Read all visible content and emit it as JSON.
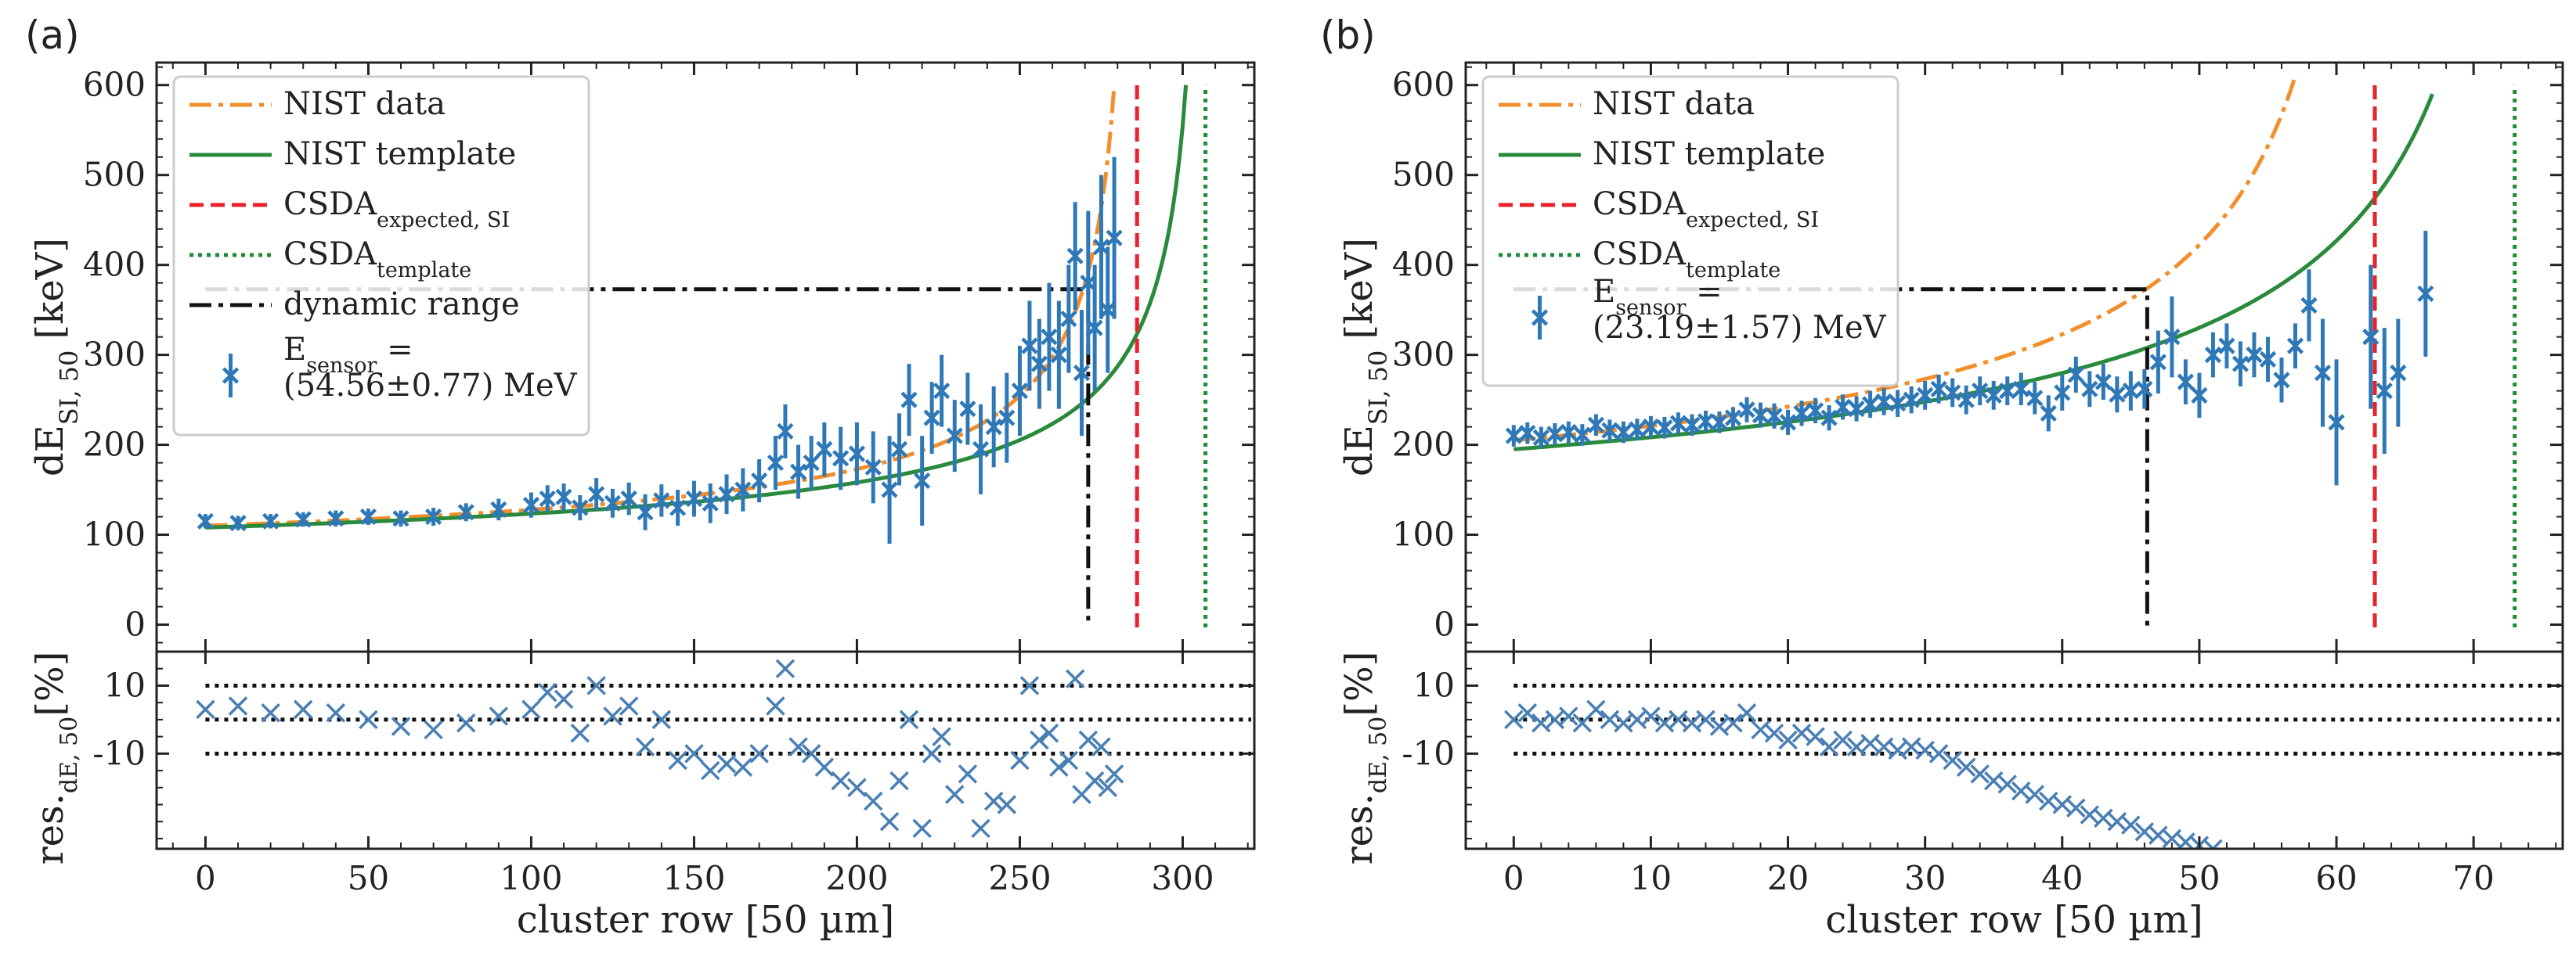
{
  "chart_data": [
    {
      "panel_label": "(a)",
      "type": "scatter",
      "xlabel": "cluster row [50 µm]",
      "ylabel_main": "dE",
      "ylabel_main_sub": "SI, 50",
      "ylabel_main_unit": "[keV]",
      "ylabel_res": "res.",
      "ylabel_res_sub": "dE, 50",
      "ylabel_res_unit": "[%]",
      "xlim": [
        -15,
        322
      ],
      "ylim": [
        -30,
        625
      ],
      "res_ylim": [
        -38,
        20
      ],
      "xticks": [
        0,
        50,
        100,
        150,
        200,
        250,
        300
      ],
      "yticks": [
        0,
        100,
        200,
        300,
        400,
        500,
        600
      ],
      "res_ticks": [
        10,
        -10
      ],
      "res_lines": [
        10,
        0,
        -10
      ],
      "legend": {
        "nist_data": "NIST data",
        "nist_template": "NIST template",
        "csda_expected": "CSDA",
        "csda_expected_sub": "expected, SI",
        "csda_template": "CSDA",
        "csda_template_sub": "template",
        "dynamic_range": "dynamic range",
        "sensor_line1": "E",
        "sensor_line1_sub": "sensor",
        "sensor_line1_tail": " =",
        "sensor_line2": "(54.56±0.77) MeV"
      },
      "nist_data_curve": {
        "x_end": 279,
        "asymptote": 282,
        "A": 2430,
        "p": 0.55,
        "offset": 30
      },
      "nist_template_curve": {
        "x_end": 301,
        "asymptote": 304,
        "A": 2560,
        "p": 0.55,
        "offset": 30
      },
      "csda_expected_x": 286,
      "csda_template_x": 307,
      "dynamic_range": {
        "x": 271,
        "y": 373,
        "x_start": 0
      },
      "measurement_points": [
        {
          "x": 0,
          "y": 115,
          "err": 8
        },
        {
          "x": 10,
          "y": 113,
          "err": 8
        },
        {
          "x": 20,
          "y": 115,
          "err": 8
        },
        {
          "x": 30,
          "y": 117,
          "err": 8
        },
        {
          "x": 40,
          "y": 118,
          "err": 9
        },
        {
          "x": 50,
          "y": 120,
          "err": 9
        },
        {
          "x": 60,
          "y": 118,
          "err": 9
        },
        {
          "x": 70,
          "y": 120,
          "err": 10
        },
        {
          "x": 80,
          "y": 125,
          "err": 10
        },
        {
          "x": 90,
          "y": 128,
          "err": 12
        },
        {
          "x": 100,
          "y": 133,
          "err": 14
        },
        {
          "x": 105,
          "y": 140,
          "err": 15
        },
        {
          "x": 110,
          "y": 142,
          "err": 15
        },
        {
          "x": 115,
          "y": 130,
          "err": 14
        },
        {
          "x": 120,
          "y": 145,
          "err": 18
        },
        {
          "x": 125,
          "y": 135,
          "err": 16
        },
        {
          "x": 130,
          "y": 140,
          "err": 18
        },
        {
          "x": 135,
          "y": 125,
          "err": 20
        },
        {
          "x": 140,
          "y": 138,
          "err": 18
        },
        {
          "x": 145,
          "y": 130,
          "err": 20
        },
        {
          "x": 150,
          "y": 140,
          "err": 20
        },
        {
          "x": 155,
          "y": 135,
          "err": 22
        },
        {
          "x": 160,
          "y": 145,
          "err": 22
        },
        {
          "x": 165,
          "y": 150,
          "err": 24
        },
        {
          "x": 170,
          "y": 160,
          "err": 24
        },
        {
          "x": 175,
          "y": 180,
          "err": 30
        },
        {
          "x": 178,
          "y": 215,
          "err": 30
        },
        {
          "x": 182,
          "y": 170,
          "err": 30
        },
        {
          "x": 186,
          "y": 180,
          "err": 30
        },
        {
          "x": 190,
          "y": 195,
          "err": 30
        },
        {
          "x": 195,
          "y": 185,
          "err": 35
        },
        {
          "x": 200,
          "y": 190,
          "err": 35
        },
        {
          "x": 205,
          "y": 175,
          "err": 40
        },
        {
          "x": 210,
          "y": 150,
          "err": 60
        },
        {
          "x": 213,
          "y": 195,
          "err": 40
        },
        {
          "x": 216,
          "y": 250,
          "err": 40
        },
        {
          "x": 220,
          "y": 160,
          "err": 50
        },
        {
          "x": 223,
          "y": 230,
          "err": 40
        },
        {
          "x": 226,
          "y": 260,
          "err": 40
        },
        {
          "x": 230,
          "y": 210,
          "err": 40
        },
        {
          "x": 234,
          "y": 240,
          "err": 40
        },
        {
          "x": 238,
          "y": 195,
          "err": 50
        },
        {
          "x": 242,
          "y": 220,
          "err": 45
        },
        {
          "x": 246,
          "y": 230,
          "err": 50
        },
        {
          "x": 250,
          "y": 260,
          "err": 50
        },
        {
          "x": 253,
          "y": 310,
          "err": 50
        },
        {
          "x": 256,
          "y": 290,
          "err": 50
        },
        {
          "x": 259,
          "y": 320,
          "err": 60
        },
        {
          "x": 262,
          "y": 300,
          "err": 60
        },
        {
          "x": 265,
          "y": 340,
          "err": 60
        },
        {
          "x": 267,
          "y": 410,
          "err": 60
        },
        {
          "x": 269,
          "y": 280,
          "err": 70
        },
        {
          "x": 271,
          "y": 380,
          "err": 80
        },
        {
          "x": 273,
          "y": 330,
          "err": 70
        },
        {
          "x": 275,
          "y": 420,
          "err": 80
        },
        {
          "x": 277,
          "y": 350,
          "err": 70
        },
        {
          "x": 279,
          "y": 430,
          "err": 90
        }
      ],
      "residual_points": [
        {
          "x": 0,
          "y": 3
        },
        {
          "x": 10,
          "y": 4
        },
        {
          "x": 20,
          "y": 2
        },
        {
          "x": 30,
          "y": 3
        },
        {
          "x": 40,
          "y": 2
        },
        {
          "x": 50,
          "y": 0
        },
        {
          "x": 60,
          "y": -2
        },
        {
          "x": 70,
          "y": -3
        },
        {
          "x": 80,
          "y": -1
        },
        {
          "x": 90,
          "y": 1
        },
        {
          "x": 100,
          "y": 3
        },
        {
          "x": 105,
          "y": 8
        },
        {
          "x": 110,
          "y": 6
        },
        {
          "x": 115,
          "y": -4
        },
        {
          "x": 120,
          "y": 10
        },
        {
          "x": 125,
          "y": 1
        },
        {
          "x": 130,
          "y": 4
        },
        {
          "x": 135,
          "y": -8
        },
        {
          "x": 140,
          "y": 0
        },
        {
          "x": 145,
          "y": -12
        },
        {
          "x": 150,
          "y": -10
        },
        {
          "x": 155,
          "y": -15
        },
        {
          "x": 160,
          "y": -13
        },
        {
          "x": 165,
          "y": -14
        },
        {
          "x": 170,
          "y": -10
        },
        {
          "x": 175,
          "y": 4
        },
        {
          "x": 178,
          "y": 15
        },
        {
          "x": 182,
          "y": -8
        },
        {
          "x": 186,
          "y": -10
        },
        {
          "x": 190,
          "y": -14
        },
        {
          "x": 195,
          "y": -18
        },
        {
          "x": 200,
          "y": -20
        },
        {
          "x": 205,
          "y": -24
        },
        {
          "x": 210,
          "y": -30
        },
        {
          "x": 213,
          "y": -18
        },
        {
          "x": 216,
          "y": 0
        },
        {
          "x": 220,
          "y": -32
        },
        {
          "x": 223,
          "y": -10
        },
        {
          "x": 226,
          "y": -5
        },
        {
          "x": 230,
          "y": -22
        },
        {
          "x": 234,
          "y": -16
        },
        {
          "x": 238,
          "y": -32
        },
        {
          "x": 242,
          "y": -24
        },
        {
          "x": 246,
          "y": -25
        },
        {
          "x": 250,
          "y": -12
        },
        {
          "x": 253,
          "y": 10
        },
        {
          "x": 256,
          "y": -6
        },
        {
          "x": 259,
          "y": -4
        },
        {
          "x": 262,
          "y": -14
        },
        {
          "x": 265,
          "y": -12
        },
        {
          "x": 267,
          "y": 12
        },
        {
          "x": 269,
          "y": -22
        },
        {
          "x": 271,
          "y": -6
        },
        {
          "x": 273,
          "y": -18
        },
        {
          "x": 275,
          "y": -8
        },
        {
          "x": 277,
          "y": -20
        },
        {
          "x": 279,
          "y": -16
        }
      ]
    },
    {
      "panel_label": "(b)",
      "type": "scatter",
      "xlabel": "cluster row [50 µm]",
      "ylabel_main": "dE",
      "ylabel_main_sub": "SI, 50",
      "ylabel_main_unit": "[keV]",
      "ylabel_res": "res.",
      "ylabel_res_sub": "dE, 50",
      "ylabel_res_unit": "[%]",
      "xlim": [
        -3.5,
        76.5
      ],
      "ylim": [
        -30,
        625
      ],
      "res_ylim": [
        -38,
        20
      ],
      "xticks": [
        0,
        10,
        20,
        30,
        40,
        50,
        60,
        70
      ],
      "yticks": [
        0,
        100,
        200,
        300,
        400,
        500,
        600
      ],
      "res_ticks": [
        10,
        -10
      ],
      "res_lines": [
        10,
        0,
        -10
      ],
      "legend": {
        "nist_data": "NIST data",
        "nist_template": "NIST template",
        "csda_expected": "CSDA",
        "csda_expected_sub": "expected, SI",
        "csda_template": "CSDA",
        "csda_template_sub": "template",
        "sensor_line1": "E",
        "sensor_line1_sub": "sensor",
        "sensor_line1_tail": " =",
        "sensor_line2": "(23.19±1.57) MeV"
      },
      "nist_data_curve": {
        "x_end": 57,
        "asymptote": 60.5,
        "A": 880,
        "p": 0.55,
        "offset": 30
      },
      "nist_template_curve": {
        "x_end": 67,
        "asymptote": 72,
        "A": 1010,
        "p": 0.55,
        "offset": 30
      },
      "csda_expected_x": 62.8,
      "csda_template_x": 73,
      "dynamic_range": {
        "x": 46.2,
        "y": 373,
        "x_start": 0
      },
      "measurement_points": [
        {
          "x": 0,
          "y": 210,
          "err": 12
        },
        {
          "x": 1,
          "y": 213,
          "err": 12
        },
        {
          "x": 2,
          "y": 208,
          "err": 12
        },
        {
          "x": 3,
          "y": 212,
          "err": 12
        },
        {
          "x": 4,
          "y": 214,
          "err": 12
        },
        {
          "x": 5,
          "y": 211,
          "err": 12
        },
        {
          "x": 6,
          "y": 222,
          "err": 12
        },
        {
          "x": 7,
          "y": 216,
          "err": 12
        },
        {
          "x": 8,
          "y": 214,
          "err": 12
        },
        {
          "x": 9,
          "y": 217,
          "err": 12
        },
        {
          "x": 10,
          "y": 220,
          "err": 12
        },
        {
          "x": 11,
          "y": 219,
          "err": 12
        },
        {
          "x": 12,
          "y": 224,
          "err": 12
        },
        {
          "x": 13,
          "y": 222,
          "err": 12
        },
        {
          "x": 14,
          "y": 226,
          "err": 12
        },
        {
          "x": 15,
          "y": 225,
          "err": 12
        },
        {
          "x": 16,
          "y": 230,
          "err": 12
        },
        {
          "x": 17,
          "y": 239,
          "err": 14
        },
        {
          "x": 18,
          "y": 233,
          "err": 14
        },
        {
          "x": 19,
          "y": 232,
          "err": 14
        },
        {
          "x": 20,
          "y": 225,
          "err": 14
        },
        {
          "x": 21,
          "y": 235,
          "err": 14
        },
        {
          "x": 22,
          "y": 238,
          "err": 14
        },
        {
          "x": 23,
          "y": 230,
          "err": 14
        },
        {
          "x": 24,
          "y": 242,
          "err": 14
        },
        {
          "x": 25,
          "y": 240,
          "err": 14
        },
        {
          "x": 26,
          "y": 245,
          "err": 15
        },
        {
          "x": 27,
          "y": 248,
          "err": 15
        },
        {
          "x": 28,
          "y": 246,
          "err": 15
        },
        {
          "x": 29,
          "y": 250,
          "err": 15
        },
        {
          "x": 30,
          "y": 255,
          "err": 16
        },
        {
          "x": 31,
          "y": 262,
          "err": 16
        },
        {
          "x": 32,
          "y": 258,
          "err": 16
        },
        {
          "x": 33,
          "y": 250,
          "err": 16
        },
        {
          "x": 34,
          "y": 260,
          "err": 16
        },
        {
          "x": 35,
          "y": 255,
          "err": 16
        },
        {
          "x": 36,
          "y": 260,
          "err": 16
        },
        {
          "x": 37,
          "y": 262,
          "err": 18
        },
        {
          "x": 38,
          "y": 252,
          "err": 18
        },
        {
          "x": 39,
          "y": 235,
          "err": 20
        },
        {
          "x": 40,
          "y": 258,
          "err": 20
        },
        {
          "x": 41,
          "y": 278,
          "err": 20
        },
        {
          "x": 42,
          "y": 262,
          "err": 20
        },
        {
          "x": 43,
          "y": 270,
          "err": 20
        },
        {
          "x": 44,
          "y": 256,
          "err": 20
        },
        {
          "x": 45,
          "y": 260,
          "err": 22
        },
        {
          "x": 46,
          "y": 262,
          "err": 22
        },
        {
          "x": 47,
          "y": 292,
          "err": 35
        },
        {
          "x": 48,
          "y": 320,
          "err": 45
        },
        {
          "x": 49,
          "y": 270,
          "err": 25
        },
        {
          "x": 50,
          "y": 255,
          "err": 25
        },
        {
          "x": 51,
          "y": 300,
          "err": 25
        },
        {
          "x": 52,
          "y": 310,
          "err": 25
        },
        {
          "x": 53,
          "y": 290,
          "err": 25
        },
        {
          "x": 54,
          "y": 300,
          "err": 25
        },
        {
          "x": 55,
          "y": 295,
          "err": 25
        },
        {
          "x": 56,
          "y": 272,
          "err": 25
        },
        {
          "x": 57,
          "y": 310,
          "err": 25
        },
        {
          "x": 58,
          "y": 355,
          "err": 40
        },
        {
          "x": 59,
          "y": 280,
          "err": 60
        },
        {
          "x": 60,
          "y": 225,
          "err": 70
        },
        {
          "x": 62.5,
          "y": 320,
          "err": 80
        },
        {
          "x": 63.5,
          "y": 260,
          "err": 70
        },
        {
          "x": 64.5,
          "y": 280,
          "err": 60
        },
        {
          "x": 66.5,
          "y": 368,
          "err": 70
        }
      ],
      "residual_points": [
        {
          "x": 0,
          "y": 0
        },
        {
          "x": 1,
          "y": 2
        },
        {
          "x": 2,
          "y": -1
        },
        {
          "x": 3,
          "y": 0
        },
        {
          "x": 4,
          "y": 1
        },
        {
          "x": 5,
          "y": -1
        },
        {
          "x": 6,
          "y": 3
        },
        {
          "x": 7,
          "y": 0
        },
        {
          "x": 8,
          "y": -1
        },
        {
          "x": 9,
          "y": 0
        },
        {
          "x": 10,
          "y": 1
        },
        {
          "x": 11,
          "y": -1
        },
        {
          "x": 12,
          "y": 0
        },
        {
          "x": 13,
          "y": -1
        },
        {
          "x": 14,
          "y": 0
        },
        {
          "x": 15,
          "y": -2
        },
        {
          "x": 16,
          "y": -1
        },
        {
          "x": 17,
          "y": 2
        },
        {
          "x": 18,
          "y": -3
        },
        {
          "x": 19,
          "y": -4
        },
        {
          "x": 20,
          "y": -6
        },
        {
          "x": 21,
          "y": -4
        },
        {
          "x": 22,
          "y": -5
        },
        {
          "x": 23,
          "y": -8
        },
        {
          "x": 24,
          "y": -6
        },
        {
          "x": 25,
          "y": -8
        },
        {
          "x": 26,
          "y": -7
        },
        {
          "x": 27,
          "y": -8
        },
        {
          "x": 28,
          "y": -9
        },
        {
          "x": 29,
          "y": -8
        },
        {
          "x": 30,
          "y": -9
        },
        {
          "x": 31,
          "y": -10
        },
        {
          "x": 32,
          "y": -12
        },
        {
          "x": 33,
          "y": -14
        },
        {
          "x": 34,
          "y": -16
        },
        {
          "x": 35,
          "y": -18
        },
        {
          "x": 36,
          "y": -19
        },
        {
          "x": 37,
          "y": -21
        },
        {
          "x": 38,
          "y": -22
        },
        {
          "x": 39,
          "y": -24
        },
        {
          "x": 40,
          "y": -25
        },
        {
          "x": 41,
          "y": -26
        },
        {
          "x": 42,
          "y": -28
        },
        {
          "x": 43,
          "y": -29
        },
        {
          "x": 44,
          "y": -30
        },
        {
          "x": 45,
          "y": -31
        },
        {
          "x": 46,
          "y": -33
        },
        {
          "x": 47,
          "y": -34
        },
        {
          "x": 48,
          "y": -35
        },
        {
          "x": 49,
          "y": -36
        },
        {
          "x": 50,
          "y": -37
        },
        {
          "x": 51,
          "y": -38
        }
      ]
    }
  ],
  "colors": {
    "nist_data": "#f28e2b",
    "nist_template": "#2a8a3c",
    "csda_expected": "#e8212b",
    "csda_template": "#1f8a36",
    "dynamic_range": "#111111",
    "points": "#2f78b7",
    "residual_points": "#4a7fb5",
    "axis": "#222222"
  }
}
